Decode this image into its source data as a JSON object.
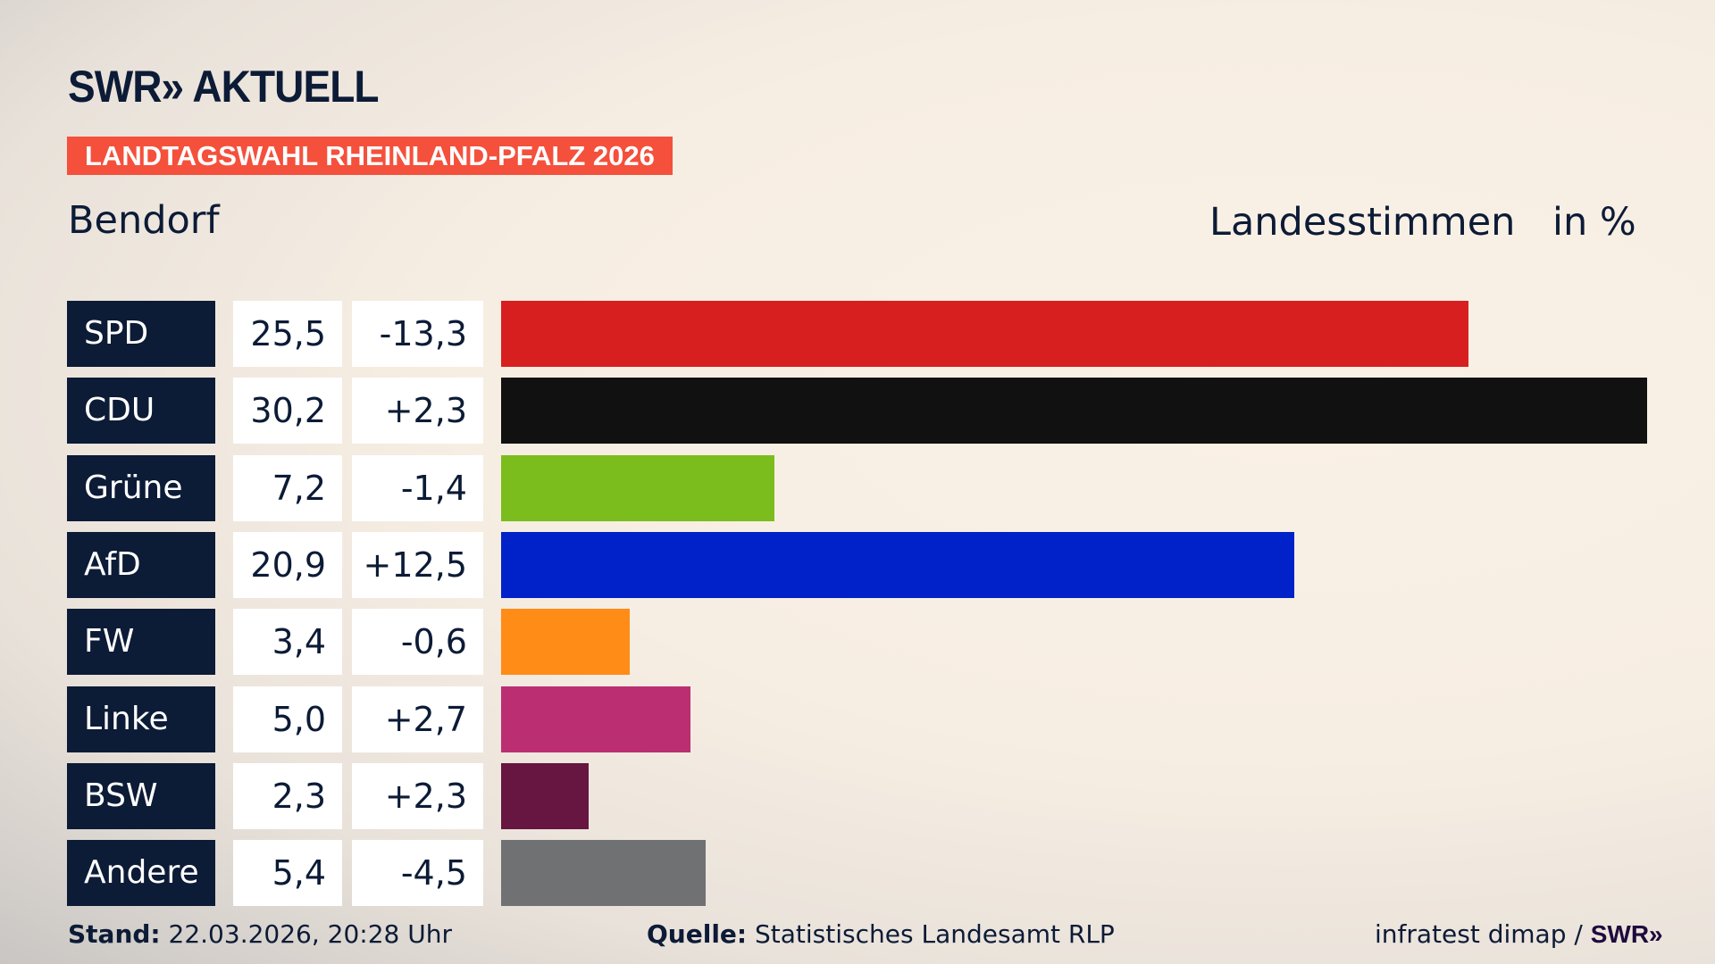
{
  "header": {
    "logo": "SWR» AKTUELL",
    "banner": "LANDTAGSWAHL RHEINLAND-PFALZ 2026",
    "region": "Bendorf",
    "metric": "Landesstimmen",
    "unit": "in %"
  },
  "chart_data": {
    "type": "bar",
    "orientation": "horizontal",
    "categories": [
      "SPD",
      "CDU",
      "Grüne",
      "AfD",
      "FW",
      "Linke",
      "BSW",
      "Andere"
    ],
    "values": [
      25.5,
      30.2,
      7.2,
      20.9,
      3.4,
      5.0,
      2.3,
      5.4
    ],
    "value_labels": [
      "25,5",
      "30,2",
      "7,2",
      "20,9",
      "3,4",
      "5,0",
      "2,3",
      "5,4"
    ],
    "diff_labels": [
      "-13,3",
      "+2,3",
      "-1,4",
      "+12,5",
      "-0,6",
      "+2,7",
      "+2,3",
      "-4,5"
    ],
    "colors": [
      "#d81f20",
      "#111111",
      "#7abd1c",
      "#0022c8",
      "#ff8c17",
      "#bb2f72",
      "#661640",
      "#707173"
    ],
    "xlim": [
      0,
      30.2
    ]
  },
  "footer": {
    "stand_label": "Stand:",
    "stand_value": "22.03.2026, 20:28 Uhr",
    "source_label": "Quelle:",
    "source_value": "Statistisches Landesamt RLP",
    "credit": "infratest dimap /",
    "credit_logo": "SWR»"
  }
}
